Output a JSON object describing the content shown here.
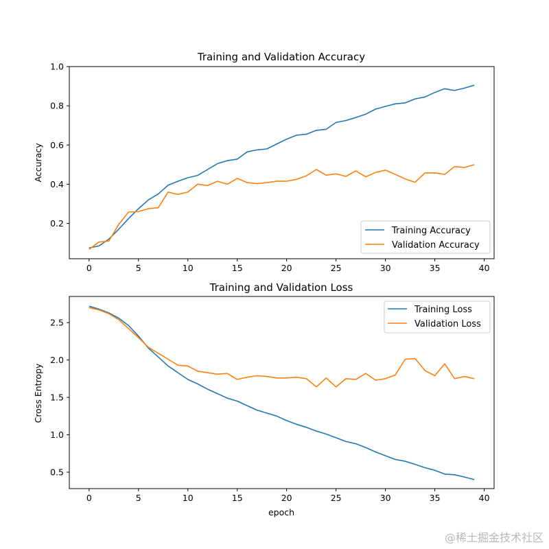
{
  "chart_data": [
    {
      "type": "line",
      "title": "Training and Validation Accuracy",
      "xlabel": "",
      "ylabel": "Accuracy",
      "xlim": [
        -2,
        41
      ],
      "ylim": [
        0.02,
        1.0
      ],
      "xticks": [
        0,
        5,
        10,
        15,
        20,
        25,
        30,
        35,
        40
      ],
      "yticks": [
        0.2,
        0.4,
        0.6,
        0.8,
        1.0
      ],
      "xtick_labels": [
        "0",
        "5",
        "10",
        "15",
        "20",
        "25",
        "30",
        "35",
        "40"
      ],
      "ytick_labels": [
        "0.2",
        "0.4",
        "0.6",
        "0.8",
        "1.0"
      ],
      "grid": false,
      "legend_position": "lower-right",
      "x": [
        0,
        1,
        2,
        3,
        4,
        5,
        6,
        7,
        8,
        9,
        10,
        11,
        12,
        13,
        14,
        15,
        16,
        17,
        18,
        19,
        20,
        21,
        22,
        23,
        24,
        25,
        26,
        27,
        28,
        29,
        30,
        31,
        32,
        33,
        34,
        35,
        36,
        37,
        38,
        39
      ],
      "series": [
        {
          "name": "Training Accuracy",
          "color": "#1f77b4",
          "values": [
            0.075,
            0.085,
            0.12,
            0.17,
            0.225,
            0.275,
            0.32,
            0.35,
            0.395,
            0.415,
            0.433,
            0.445,
            0.475,
            0.505,
            0.52,
            0.528,
            0.565,
            0.575,
            0.58,
            0.605,
            0.63,
            0.65,
            0.655,
            0.675,
            0.68,
            0.715,
            0.725,
            0.74,
            0.757,
            0.783,
            0.797,
            0.81,
            0.815,
            0.835,
            0.845,
            0.868,
            0.887,
            0.878,
            0.89,
            0.905
          ]
        },
        {
          "name": "Validation Accuracy",
          "color": "#ff7f0e",
          "values": [
            0.068,
            0.105,
            0.11,
            0.195,
            0.258,
            0.26,
            0.275,
            0.28,
            0.36,
            0.348,
            0.36,
            0.4,
            0.393,
            0.415,
            0.4,
            0.43,
            0.408,
            0.403,
            0.408,
            0.415,
            0.415,
            0.425,
            0.443,
            0.475,
            0.446,
            0.453,
            0.44,
            0.468,
            0.438,
            0.46,
            0.472,
            0.45,
            0.427,
            0.41,
            0.457,
            0.458,
            0.45,
            0.49,
            0.485,
            0.5
          ]
        }
      ]
    },
    {
      "type": "line",
      "title": "Training and Validation Loss",
      "xlabel": "epoch",
      "ylabel": "Cross Entropy",
      "xlim": [
        -2,
        41
      ],
      "ylim": [
        0.28,
        2.85
      ],
      "xticks": [
        0,
        5,
        10,
        15,
        20,
        25,
        30,
        35,
        40
      ],
      "yticks": [
        0.5,
        1.0,
        1.5,
        2.0,
        2.5
      ],
      "xtick_labels": [
        "0",
        "5",
        "10",
        "15",
        "20",
        "25",
        "30",
        "35",
        "40"
      ],
      "ytick_labels": [
        "0.5",
        "1.0",
        "1.5",
        "2.0",
        "2.5"
      ],
      "grid": false,
      "legend_position": "upper-right",
      "x": [
        0,
        1,
        2,
        3,
        4,
        5,
        6,
        7,
        8,
        9,
        10,
        11,
        12,
        13,
        14,
        15,
        16,
        17,
        18,
        19,
        20,
        21,
        22,
        23,
        24,
        25,
        26,
        27,
        28,
        29,
        30,
        31,
        32,
        33,
        34,
        35,
        36,
        37,
        38,
        39
      ],
      "series": [
        {
          "name": "Training Loss",
          "color": "#1f77b4",
          "values": [
            2.72,
            2.68,
            2.63,
            2.56,
            2.46,
            2.32,
            2.16,
            2.04,
            1.92,
            1.83,
            1.74,
            1.68,
            1.61,
            1.55,
            1.49,
            1.45,
            1.39,
            1.33,
            1.29,
            1.25,
            1.19,
            1.14,
            1.1,
            1.05,
            1.01,
            0.96,
            0.91,
            0.88,
            0.83,
            0.77,
            0.72,
            0.67,
            0.645,
            0.605,
            0.56,
            0.525,
            0.475,
            0.465,
            0.435,
            0.4
          ]
        },
        {
          "name": "Validation Loss",
          "color": "#ff7f0e",
          "values": [
            2.7,
            2.67,
            2.62,
            2.54,
            2.42,
            2.3,
            2.17,
            2.09,
            2.01,
            1.93,
            1.92,
            1.85,
            1.83,
            1.81,
            1.82,
            1.74,
            1.77,
            1.79,
            1.78,
            1.76,
            1.76,
            1.77,
            1.75,
            1.64,
            1.76,
            1.64,
            1.75,
            1.74,
            1.82,
            1.73,
            1.75,
            1.8,
            2.01,
            2.02,
            1.86,
            1.79,
            1.95,
            1.75,
            1.78,
            1.75
          ]
        }
      ]
    }
  ],
  "watermark": "@稀土掘金技术社区"
}
